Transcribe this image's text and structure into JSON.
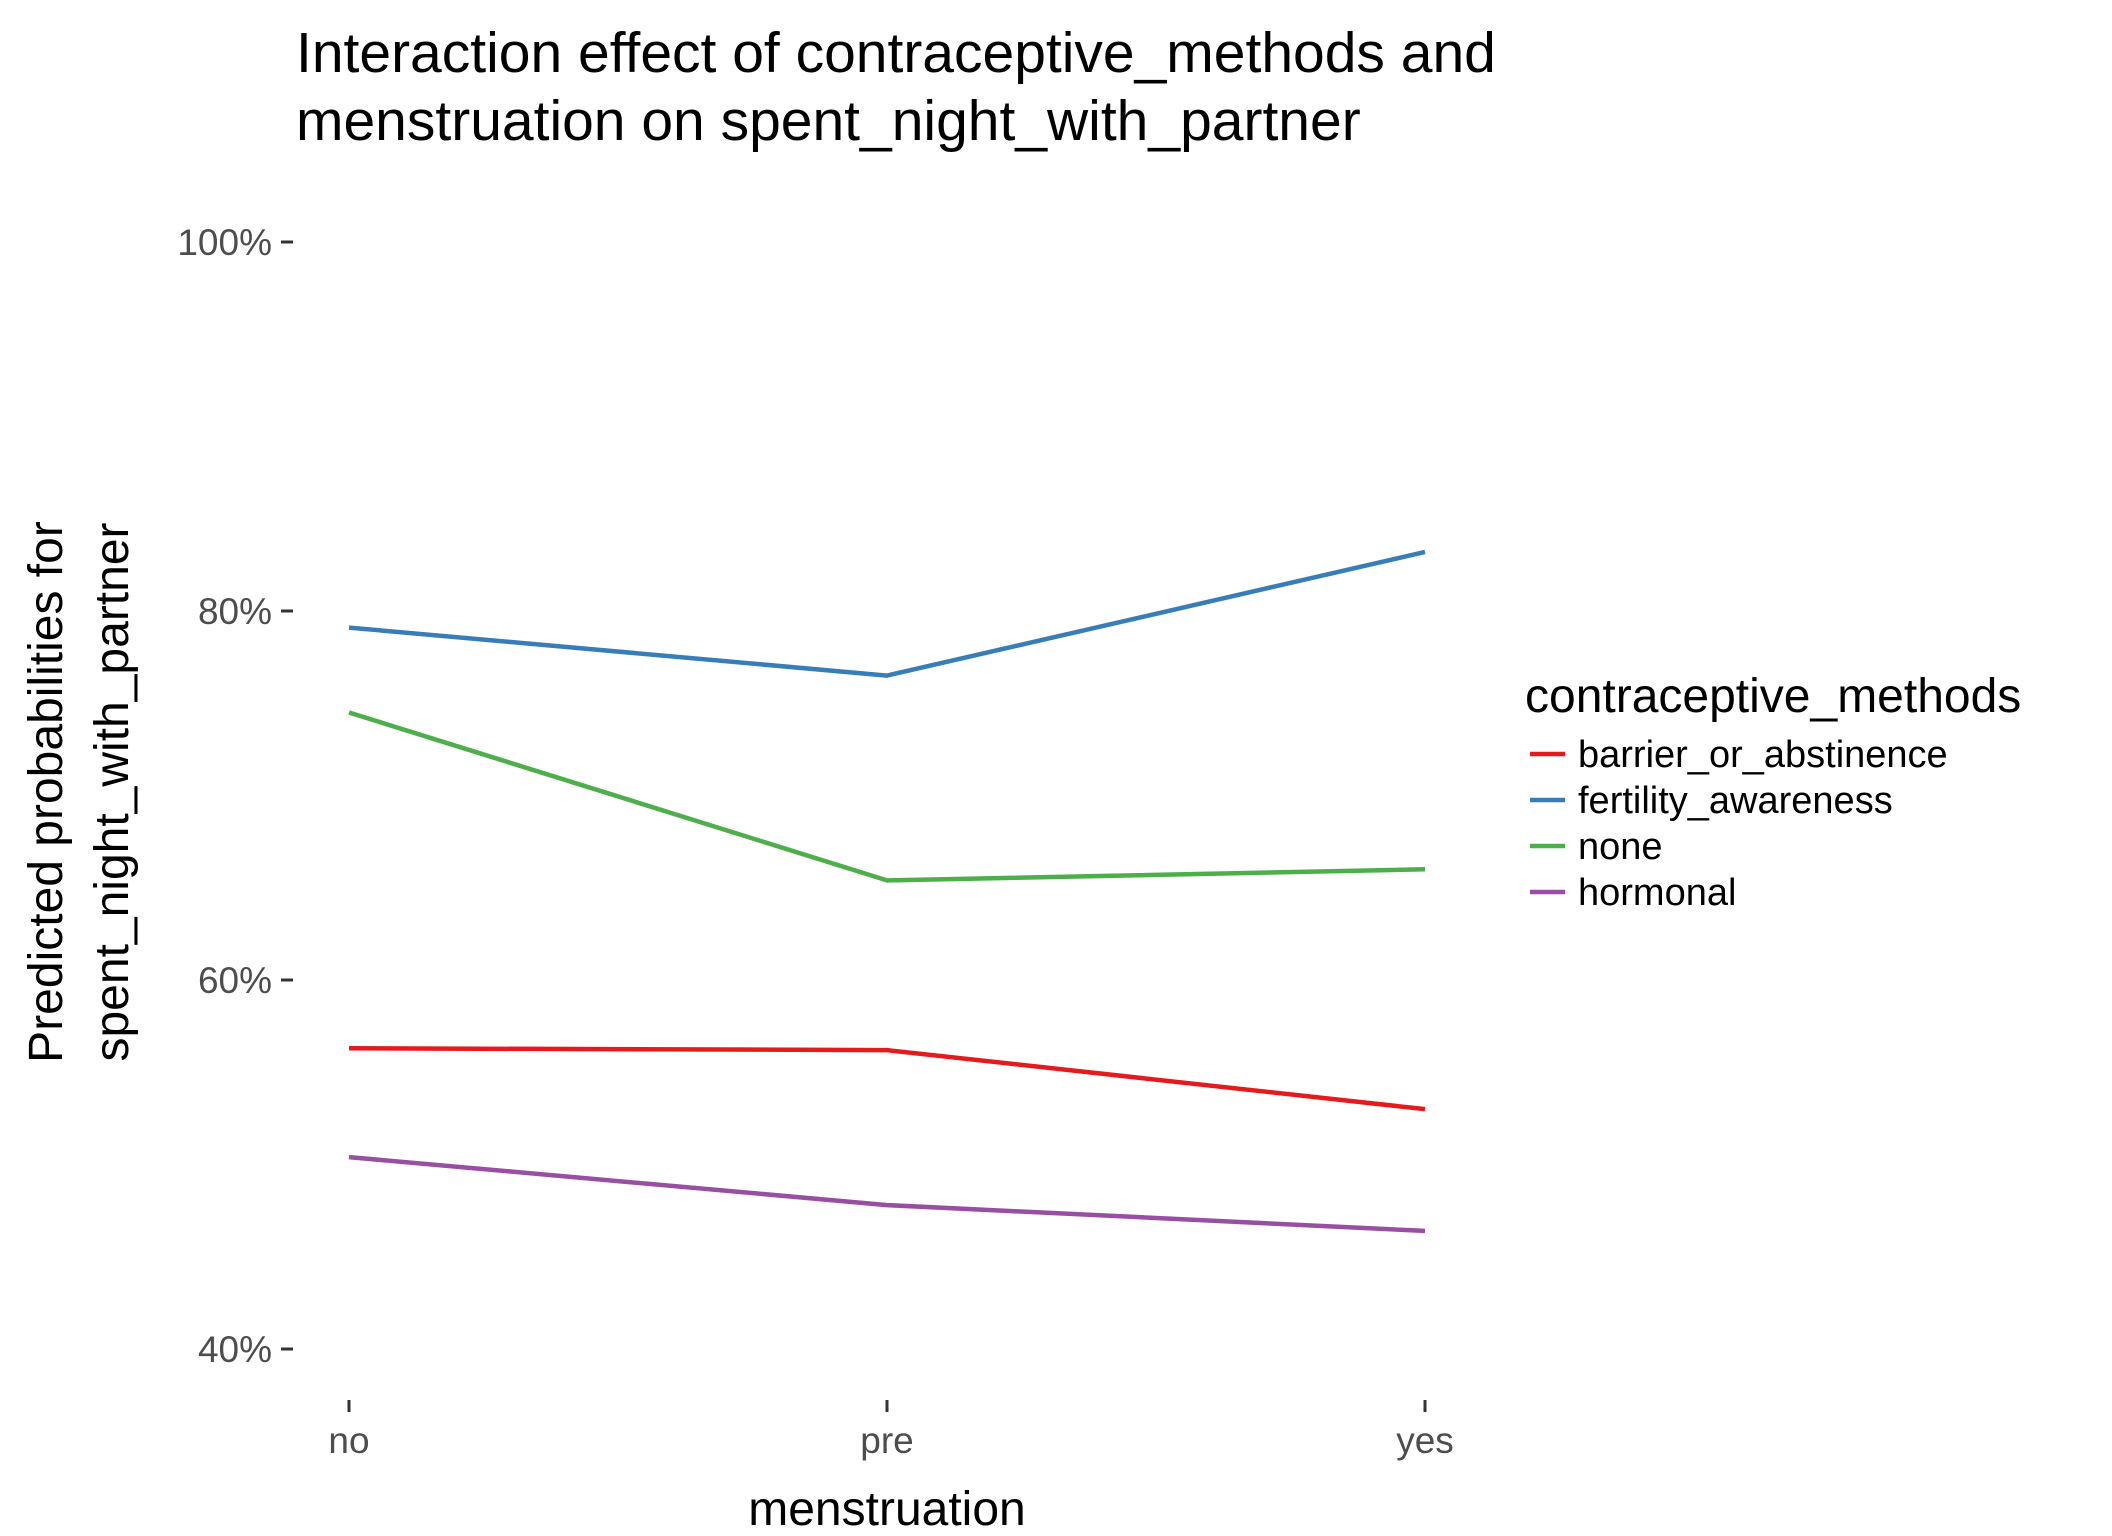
{
  "chart_data": {
    "type": "line",
    "title_lines": [
      "Interaction effect of contraceptive_methods and",
      "menstruation on spent_night_with_partner"
    ],
    "xlabel": "menstruation",
    "ylabel_lines": [
      "Predicted probabilities for",
      "spent_night_with_partner"
    ],
    "categories": [
      "no",
      "pre",
      "yes"
    ],
    "ylim": [
      0.38,
      1.0
    ],
    "yticks": [
      0.4,
      0.6,
      0.8,
      1.0
    ],
    "ytick_labels": [
      "40%",
      "60%",
      "80%",
      "100%"
    ],
    "grid": false,
    "legend": {
      "title": "contraceptive_methods",
      "placement": "right"
    },
    "series": [
      {
        "name": "barrier_or_abstinence",
        "color": "#e41a1c",
        "values": [
          0.563,
          0.562,
          0.53
        ]
      },
      {
        "name": "fertility_awareness",
        "color": "#377eb8",
        "values": [
          0.791,
          0.765,
          0.832
        ]
      },
      {
        "name": "none",
        "color": "#4daf4a",
        "values": [
          0.745,
          0.654,
          0.66
        ]
      },
      {
        "name": "hormonal",
        "color": "#984ea3",
        "values": [
          0.504,
          0.478,
          0.464
        ]
      }
    ]
  }
}
